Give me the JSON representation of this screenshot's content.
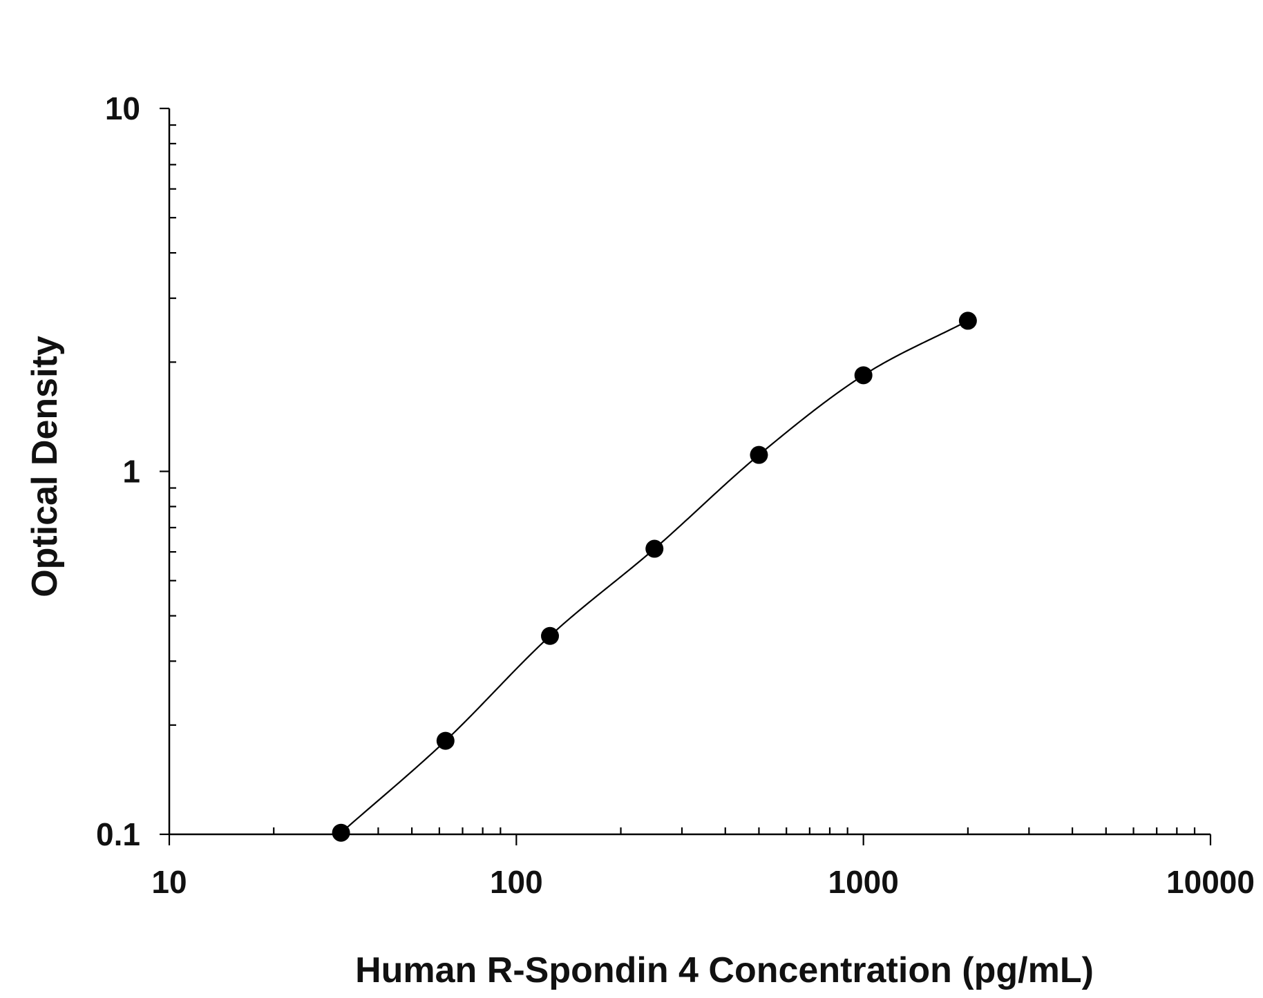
{
  "chart_data": {
    "type": "scatter",
    "title": "",
    "xlabel": "Human R-Spondin 4 Concentration (pg/mL)",
    "ylabel": "Optical Density",
    "xscale": "log",
    "yscale": "log",
    "xlim": [
      10,
      10000
    ],
    "ylim": [
      0.1,
      10
    ],
    "x_ticks": [
      "10",
      "100",
      "1000",
      "10000"
    ],
    "y_ticks": [
      "0.1",
      "1",
      "10"
    ],
    "grid": false,
    "legend": "none",
    "series": [
      {
        "points": [
          {
            "x": 31.25,
            "y": 0.101
          },
          {
            "x": 62.5,
            "y": 0.181
          },
          {
            "x": 125,
            "y": 0.352
          },
          {
            "x": 250,
            "y": 0.612
          },
          {
            "x": 500,
            "y": 1.11
          },
          {
            "x": 1000,
            "y": 1.84
          },
          {
            "x": 2000,
            "y": 2.6
          }
        ],
        "fit_curve": "4PL"
      }
    ],
    "colors": {
      "marker": "#000000",
      "line": "#000000",
      "axis": "#000000"
    }
  }
}
